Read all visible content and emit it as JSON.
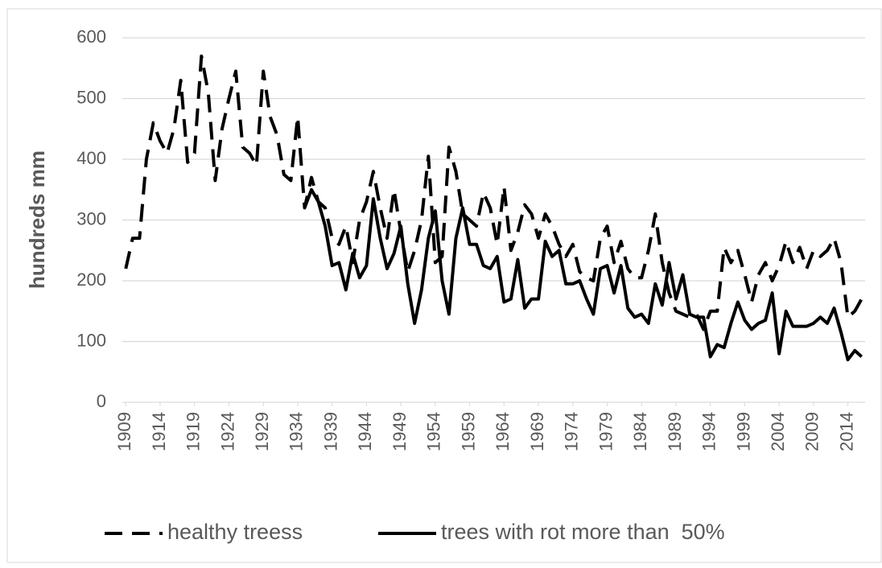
{
  "chart_data": {
    "type": "line",
    "y_label": "hundreds mm",
    "x": [
      1909,
      1910,
      1911,
      1912,
      1913,
      1914,
      1915,
      1916,
      1917,
      1918,
      1919,
      1920,
      1921,
      1922,
      1923,
      1924,
      1925,
      1926,
      1927,
      1928,
      1929,
      1930,
      1931,
      1932,
      1933,
      1934,
      1935,
      1936,
      1937,
      1938,
      1939,
      1940,
      1941,
      1942,
      1943,
      1944,
      1945,
      1946,
      1947,
      1948,
      1949,
      1950,
      1951,
      1952,
      1953,
      1954,
      1955,
      1956,
      1957,
      1958,
      1959,
      1960,
      1961,
      1962,
      1963,
      1964,
      1965,
      1966,
      1967,
      1968,
      1969,
      1970,
      1971,
      1972,
      1973,
      1974,
      1975,
      1976,
      1977,
      1978,
      1979,
      1980,
      1981,
      1982,
      1983,
      1984,
      1985,
      1986,
      1987,
      1988,
      1989,
      1990,
      1991,
      1992,
      1993,
      1994,
      1995,
      1996,
      1997,
      1998,
      1999,
      2000,
      2001,
      2002,
      2003,
      2004,
      2005,
      2006,
      2007,
      2008,
      2009,
      2010,
      2011,
      2012,
      2013,
      2014,
      2015,
      2016
    ],
    "series": [
      {
        "name": "healthy treess",
        "color": "#000000",
        "dash": true,
        "values": [
          220,
          270,
          270,
          400,
          460,
          430,
          410,
          450,
          530,
          395,
          410,
          570,
          510,
          365,
          450,
          500,
          545,
          420,
          410,
          390,
          545,
          470,
          440,
          375,
          365,
          470,
          320,
          370,
          330,
          320,
          270,
          260,
          290,
          230,
          300,
          330,
          380,
          320,
          270,
          350,
          280,
          215,
          250,
          300,
          405,
          230,
          240,
          420,
          380,
          310,
          300,
          290,
          345,
          320,
          260,
          355,
          250,
          280,
          325,
          310,
          270,
          310,
          290,
          260,
          240,
          260,
          215,
          205,
          200,
          270,
          290,
          230,
          265,
          220,
          205,
          205,
          250,
          310,
          230,
          180,
          150,
          145,
          140,
          145,
          120,
          150,
          150,
          255,
          230,
          250,
          210,
          165,
          210,
          230,
          200,
          225,
          265,
          230,
          255,
          220,
          250,
          240,
          250,
          270,
          230,
          140,
          150,
          170
        ]
      },
      {
        "name": "trees with rot more than  50%",
        "color": "#000000",
        "dash": false,
        "values": [
          null,
          null,
          null,
          null,
          null,
          null,
          null,
          null,
          null,
          null,
          null,
          null,
          null,
          null,
          null,
          null,
          null,
          null,
          null,
          null,
          null,
          null,
          null,
          null,
          null,
          null,
          320,
          350,
          330,
          290,
          225,
          230,
          185,
          245,
          205,
          225,
          335,
          270,
          220,
          245,
          290,
          195,
          130,
          185,
          270,
          315,
          200,
          145,
          270,
          320,
          260,
          260,
          225,
          220,
          240,
          165,
          170,
          235,
          155,
          170,
          170,
          265,
          240,
          250,
          195,
          195,
          200,
          170,
          145,
          220,
          225,
          180,
          225,
          155,
          140,
          145,
          130,
          195,
          160,
          230,
          170,
          210,
          145,
          140,
          140,
          75,
          95,
          90,
          130,
          165,
          135,
          120,
          130,
          135,
          180,
          80,
          150,
          125,
          125,
          125,
          130,
          140,
          130,
          155,
          115,
          70,
          85,
          75
        ]
      }
    ],
    "xlim": [
      1908.5,
      2016.5
    ],
    "xticks": [
      1909,
      1914,
      1919,
      1924,
      1929,
      1934,
      1939,
      1944,
      1949,
      1954,
      1959,
      1964,
      1969,
      1974,
      1979,
      1984,
      1989,
      1994,
      1999,
      2004,
      2009,
      2014
    ],
    "ylim": [
      0,
      600
    ],
    "yticks": [
      0,
      100,
      200,
      300,
      400,
      500,
      600
    ],
    "grid": true,
    "legend": "bottom"
  }
}
